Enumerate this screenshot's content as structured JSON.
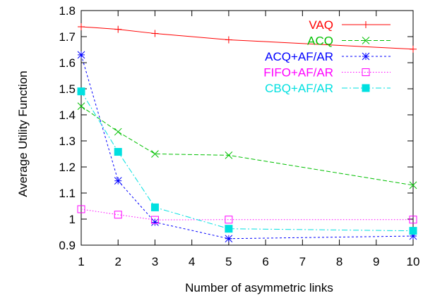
{
  "chart_data": {
    "type": "line",
    "xlabel": "Number of asymmetric links",
    "ylabel": "Average Utility Function",
    "xlim": [
      1,
      10
    ],
    "ylim": [
      0.9,
      1.8
    ],
    "x_ticks": [
      1,
      2,
      3,
      4,
      5,
      6,
      7,
      8,
      9,
      10
    ],
    "y_ticks": [
      0.9,
      1,
      1.1,
      1.2,
      1.3,
      1.4,
      1.5,
      1.6,
      1.7,
      1.8
    ],
    "x_tick_labels": [
      "1",
      "2",
      "3",
      "4",
      "5",
      "6",
      "7",
      "8",
      "9",
      "10"
    ],
    "y_tick_labels": [
      "0.9",
      "1",
      "1.1",
      "1.2",
      "1.3",
      "1.4",
      "1.5",
      "1.6",
      "1.7",
      "1.8"
    ],
    "legend_position": "top-right",
    "grid": false,
    "series": [
      {
        "name": "VAQ",
        "color": "#ff0000",
        "marker": "plus",
        "dash": "solid",
        "x": [
          1,
          2,
          3,
          5,
          10
        ],
        "values": [
          1.738,
          1.728,
          1.712,
          1.688,
          1.652
        ]
      },
      {
        "name": "ACQ",
        "color": "#00c000",
        "marker": "x",
        "dash": "dashed",
        "x": [
          1,
          2,
          3,
          5,
          10
        ],
        "values": [
          1.433,
          1.335,
          1.25,
          1.245,
          1.13
        ]
      },
      {
        "name": "ACQ+AF/AR",
        "color": "#0000ff",
        "marker": "star",
        "dash": "dotted-short",
        "x": [
          1,
          2,
          3,
          5,
          10
        ],
        "values": [
          1.63,
          1.147,
          0.988,
          0.925,
          0.935
        ]
      },
      {
        "name": "FIFO+AF/AR",
        "color": "#ff00ff",
        "marker": "open-square",
        "dash": "dotted",
        "x": [
          1,
          2,
          3,
          5,
          10
        ],
        "values": [
          1.038,
          1.017,
          0.997,
          0.998,
          0.998
        ]
      },
      {
        "name": "CBQ+AF/AR",
        "color": "#00e0e0",
        "marker": "filled-square",
        "dash": "dash-dot",
        "x": [
          1,
          2,
          3,
          5,
          10
        ],
        "values": [
          1.49,
          1.258,
          1.045,
          0.963,
          0.955
        ]
      }
    ]
  }
}
